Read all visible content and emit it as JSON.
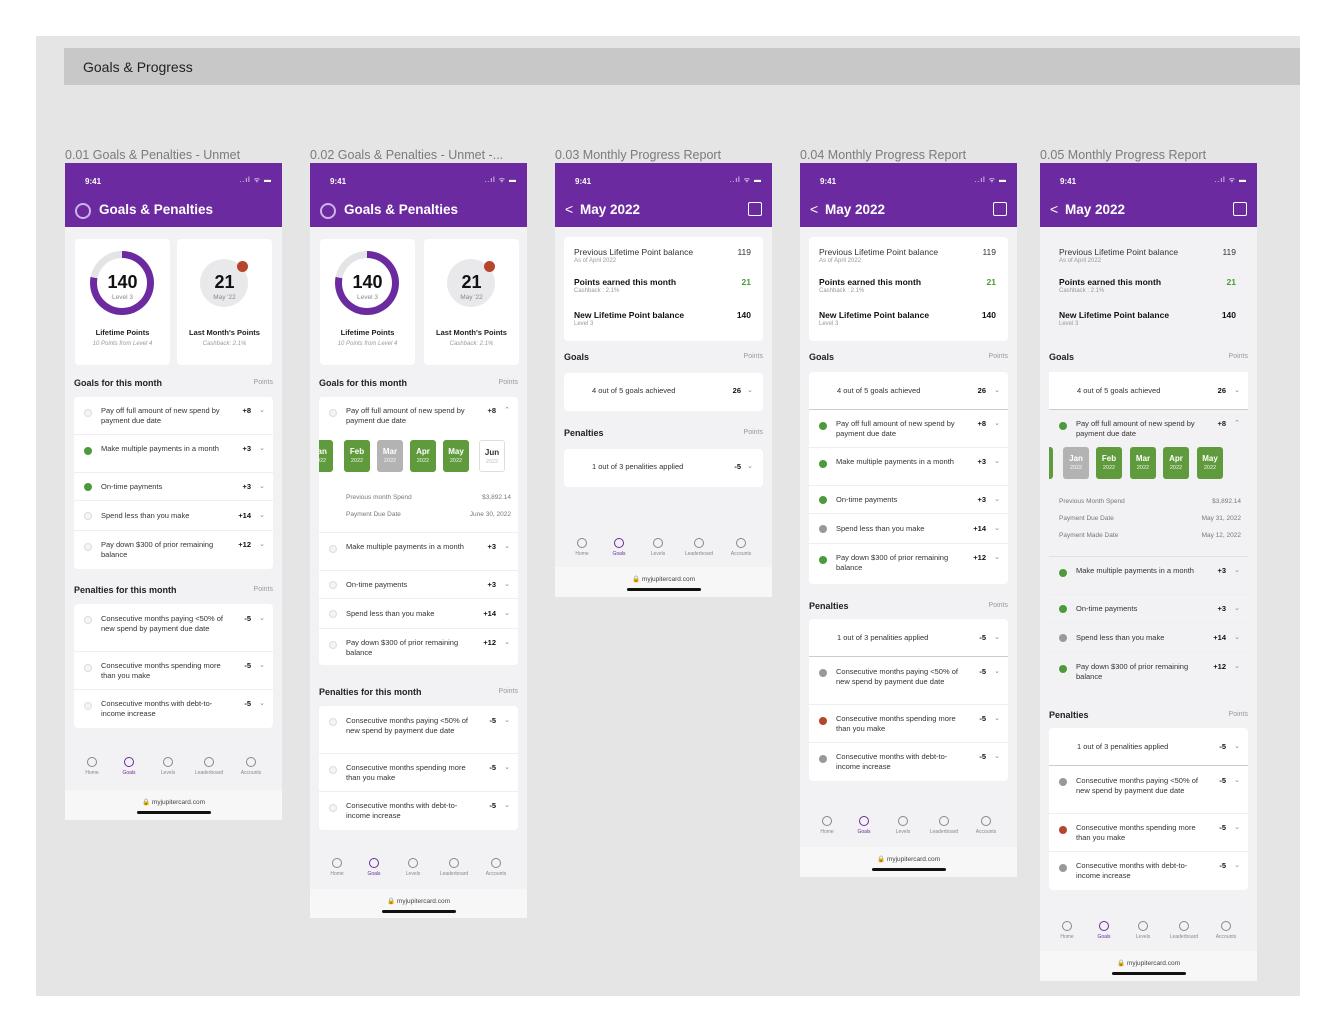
{
  "page_title": "Goals & Progress",
  "frames": {
    "f1": "0.01 Goals & Penalties - Unmet",
    "f2": "0.02 Goals & Penalties - Unmet -...",
    "f3": "0.03 Monthly Progress Report",
    "f4": "0.04 Monthly Progress Report",
    "f5": "0.05 Monthly Progress Report"
  },
  "status": {
    "time": "9:41",
    "icons": "..ıl ᯤ ▬"
  },
  "screen": {
    "goals_title": "Goals & Penalties",
    "report_title": "May 2022",
    "back": "<"
  },
  "summary": {
    "lifetime_value": "140",
    "lifetime_level": "Level 3",
    "lifetime_label": "Lifetime Points",
    "lifetime_sub": "10 Points from Level 4",
    "last_value": "21",
    "last_month": "May '22",
    "last_label": "Last Month's Points",
    "last_sub": "Cashback: 2.1%"
  },
  "sections": {
    "goals": "Goals for this month",
    "penalties": "Penalties for this month",
    "points": "Points",
    "goals_short": "Goals",
    "penalties_short": "Penalties"
  },
  "goals": [
    {
      "text": "Pay off full amount of new spend by payment due date",
      "value": "+8"
    },
    {
      "text": "Make multiple payments in a month",
      "value": "+3"
    },
    {
      "text": "On-time payments",
      "value": "+3"
    },
    {
      "text": "Spend less than you make",
      "value": "+14"
    },
    {
      "text": "Pay down $300 of prior remaining balance",
      "value": "+12"
    }
  ],
  "penalties": [
    {
      "text": "Consecutive months paying <50% of new spend by payment due date",
      "value": "-5"
    },
    {
      "text": "Consecutive months spending more than you make",
      "value": "-5"
    },
    {
      "text": "Consecutive months with debt-to-income increase",
      "value": "-5"
    }
  ],
  "months_f2": [
    {
      "m": "Jan",
      "y": "2022"
    },
    {
      "m": "Feb",
      "y": "2022"
    },
    {
      "m": "Mar",
      "y": "2022"
    },
    {
      "m": "Apr",
      "y": "2022"
    },
    {
      "m": "May",
      "y": "2022"
    },
    {
      "m": "Jun",
      "y": "2022"
    }
  ],
  "details_f2": [
    {
      "label": "Previous month Spend",
      "value": "$3,892.14"
    },
    {
      "label": "Payment Due Date",
      "value": "June 30, 2022"
    }
  ],
  "details_f5": [
    {
      "label": "Previous Month Spend",
      "value": "$3,892.14"
    },
    {
      "label": "Payment Due Date",
      "value": "May 31, 2022"
    },
    {
      "label": "Payment Made Date",
      "value": "May 12, 2022"
    }
  ],
  "report": {
    "prev_label": "Previous Lifetime Point balance",
    "prev_sub": "As of April 2022",
    "prev_value": "119",
    "earned_label": "Points earned this month",
    "earned_sub": "Cashback : 2.1%",
    "earned_value": "21",
    "new_label": "New Lifetime Point balance",
    "new_sub": "Level 3",
    "new_value": "140",
    "goals_summary": "4 out of 5 goals achieved",
    "goals_total": "26",
    "pen_summary": "1 out of 3 penalities applied",
    "pen_total": "-5"
  },
  "tabs": {
    "home": "Home",
    "goals": "Goals",
    "levels": "Levels",
    "leaderboard": "Leaderboard",
    "accounts": "Accounts"
  },
  "url": "🔒 myjupitercard.com",
  "colors": {
    "brand": "#6c2aa0",
    "success": "#4c9a3c",
    "penalty": "#b5462c"
  }
}
